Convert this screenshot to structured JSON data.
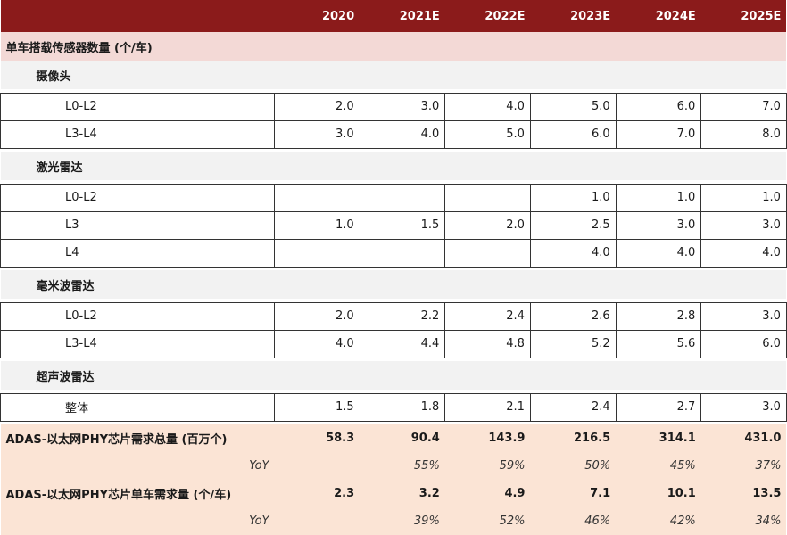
{
  "header": {
    "label": "",
    "years": [
      "2020",
      "2021E",
      "2022E",
      "2023E",
      "2024E",
      "2025E"
    ]
  },
  "title": "单车搭载传感器数量 (个/车)",
  "sections": [
    {
      "name": "摄像头",
      "rows": [
        {
          "label": "L0-L2",
          "values": [
            "2.0",
            "3.0",
            "4.0",
            "5.0",
            "6.0",
            "7.0"
          ]
        },
        {
          "label": "L3-L4",
          "values": [
            "3.0",
            "4.0",
            "5.0",
            "6.0",
            "7.0",
            "8.0"
          ]
        }
      ]
    },
    {
      "name": "激光雷达",
      "rows": [
        {
          "label": "L0-L2",
          "values": [
            "",
            "",
            "",
            "1.0",
            "1.0",
            "1.0"
          ]
        },
        {
          "label": "L3",
          "values": [
            "1.0",
            "1.5",
            "2.0",
            "2.5",
            "3.0",
            "3.0"
          ]
        },
        {
          "label": "L4",
          "values": [
            "",
            "",
            "",
            "4.0",
            "4.0",
            "4.0"
          ]
        }
      ]
    },
    {
      "name": "毫米波雷达",
      "rows": [
        {
          "label": "L0-L2",
          "values": [
            "2.0",
            "2.2",
            "2.4",
            "2.6",
            "2.8",
            "3.0"
          ]
        },
        {
          "label": "L3-L4",
          "values": [
            "4.0",
            "4.4",
            "4.8",
            "5.2",
            "5.6",
            "6.0"
          ]
        }
      ]
    },
    {
      "name": "超声波雷达",
      "rows": [
        {
          "label": "整体",
          "values": [
            "1.5",
            "1.8",
            "2.1",
            "2.4",
            "2.7",
            "3.0"
          ]
        }
      ]
    }
  ],
  "totals": [
    {
      "label": "ADAS-以太网PHY芯片需求总量 (百万个)",
      "values": [
        "58.3",
        "90.4",
        "143.9",
        "216.5",
        "314.1",
        "431.0"
      ],
      "yoy_label": "YoY",
      "yoy": [
        "",
        "55%",
        "59%",
        "50%",
        "45%",
        "37%"
      ]
    },
    {
      "label": "ADAS-以太网PHY芯片单车需求量 (个/车)",
      "values": [
        "2.3",
        "3.2",
        "4.9",
        "7.1",
        "10.1",
        "13.5"
      ],
      "yoy_label": "YoY",
      "yoy": [
        "",
        "39%",
        "52%",
        "46%",
        "42%",
        "34%"
      ]
    }
  ]
}
